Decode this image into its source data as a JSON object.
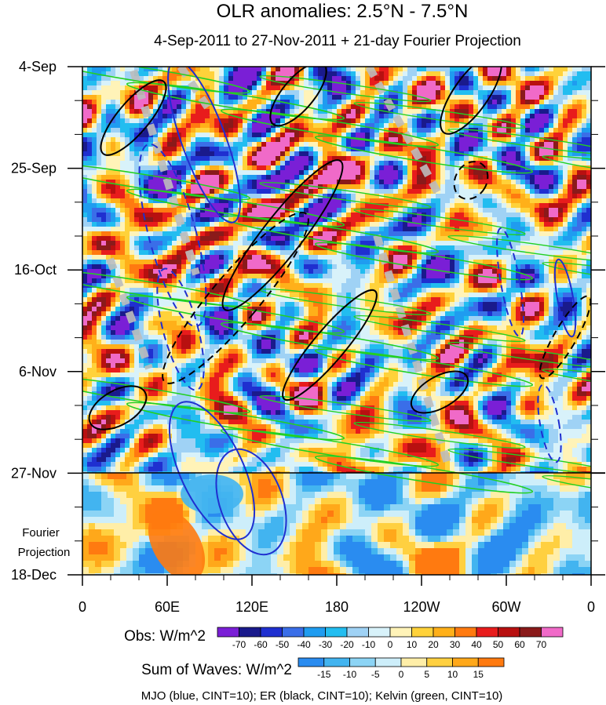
{
  "chart_data": {
    "type": "heatmap",
    "title": "OLR anomalies: 2.5°N - 7.5°N",
    "subtitle": "4-Sep-2011 to 27-Nov-2011 + 21-day Fourier Projection",
    "y_ticks": [
      "4-Sep",
      "25-Sep",
      "16-Oct",
      "6-Nov",
      "27-Nov",
      "18-Dec"
    ],
    "x_ticks": [
      "0",
      "60E",
      "120E",
      "180",
      "120W",
      "60W",
      "0"
    ],
    "projection_label": [
      "Fourier",
      "Projection"
    ],
    "obs_legend": {
      "label": "Obs: W/m^2",
      "levels": [
        "-70",
        "-60",
        "-50",
        "-40",
        "-30",
        "-20",
        "-10",
        "0",
        "10",
        "20",
        "30",
        "40",
        "50",
        "60",
        "70"
      ],
      "colors": [
        "#7a1fd6",
        "#1a1a8c",
        "#1f2fd0",
        "#3a6ee8",
        "#1f9cf0",
        "#22bdf0",
        "#9fd2f5",
        "#d8f2fa",
        "#fff3b8",
        "#ffd23a",
        "#ffb019",
        "#ff7a10",
        "#e81c1c",
        "#b81010",
        "#8a1a1a",
        "#f06ac8"
      ]
    },
    "waves_legend": {
      "label": "Sum of Waves: W/m^2",
      "levels": [
        "-15",
        "-10",
        "-5",
        "0",
        "5",
        "10",
        "15"
      ],
      "colors": [
        "#2a8cf0",
        "#42b4f0",
        "#8cd4f5",
        "#cdeefa",
        "#ffeea8",
        "#ffd040",
        "#ffa81a",
        "#ff7a10"
      ]
    },
    "note": "MJO (blue, CINT=10); ER (black, CINT=10); Kelvin (green, CINT=10)",
    "series_colors": {
      "MJO": "#1f2fd0",
      "ER": "#000000",
      "Kelvin": "#22d022"
    }
  }
}
